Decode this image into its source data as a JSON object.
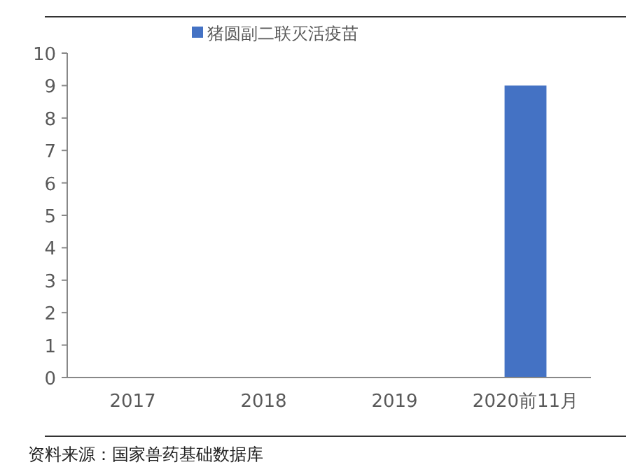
{
  "chart_data": {
    "type": "bar",
    "categories": [
      "2017",
      "2018",
      "2019",
      "2020前11月"
    ],
    "series": [
      {
        "name": "猪圆副二联灭活疫苗",
        "color": "#4472c4",
        "values": [
          0,
          0,
          0,
          9
        ]
      }
    ],
    "ylim": [
      0,
      10
    ],
    "yticks": [
      0,
      1,
      2,
      3,
      4,
      5,
      6,
      7,
      8,
      9,
      10
    ],
    "grid": false,
    "legend": "top",
    "annotations": [
      "资料来源：国家兽药基础数据库"
    ]
  }
}
